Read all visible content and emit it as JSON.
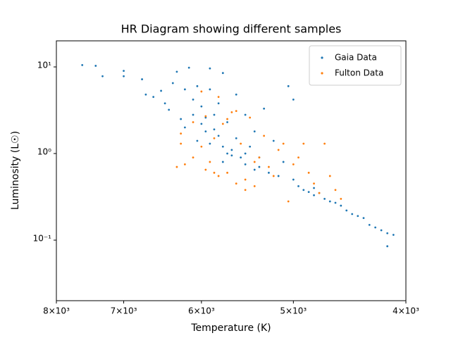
{
  "chart_data": {
    "type": "scatter",
    "title": "HR Diagram showing different samples",
    "x_label": "Temperature (K)",
    "y_label": "Luminosity (L☉)",
    "xscale": "log",
    "yscale": "log",
    "legend": "upper right",
    "xlim": [
      8000,
      4000
    ],
    "ylim": [
      0.02,
      20
    ],
    "xticks": [
      {
        "value": 8000,
        "label": "8×10³"
      },
      {
        "value": 7000,
        "label": "7×10³"
      },
      {
        "value": 6000,
        "label": "6×10³"
      },
      {
        "value": 5000,
        "label": "5×10³"
      },
      {
        "value": 4000,
        "label": "4×10³"
      }
    ],
    "yticks": [
      {
        "value": 0.1,
        "label": "10⁻¹"
      },
      {
        "value": 1,
        "label": "10⁰"
      },
      {
        "value": 10,
        "label": "10¹"
      }
    ],
    "series": [
      {
        "name": "Gaia Data",
        "color": "#1f77b4",
        "x": [
          7600,
          7400,
          7300,
          7000,
          7000,
          6750,
          6700,
          6600,
          6500,
          6450,
          6400,
          6350,
          6300,
          6200,
          6150,
          6100,
          6100,
          6050,
          6000,
          6000,
          5950,
          5900,
          5900,
          5850,
          5800,
          5800,
          5750,
          5750,
          5700,
          5650,
          5600,
          5600,
          5550,
          5500,
          5500,
          5450,
          5400,
          5400,
          5350,
          5300,
          5250,
          5200,
          5150,
          5100,
          5050,
          5000,
          5000,
          4950,
          4900,
          4850,
          4800,
          4800,
          4750,
          4700,
          4650,
          4600,
          4550,
          4500,
          4450,
          4400,
          4350,
          4300,
          4250,
          4200,
          4150,
          4150,
          4100,
          5950,
          5850,
          5700,
          5650,
          5500,
          5350,
          5900,
          5750,
          6200,
          6250,
          6050
        ],
        "values": [
          10.5,
          10.3,
          7.8,
          9,
          7.8,
          7.2,
          4.8,
          4.5,
          5.3,
          3.8,
          3.2,
          6.5,
          8.8,
          5.5,
          9.8,
          4.2,
          2.8,
          6,
          3.5,
          2.2,
          1.8,
          9.6,
          5.5,
          2.8,
          1.6,
          3.8,
          8.5,
          1.2,
          2.3,
          1.1,
          4.8,
          1.5,
          0.9,
          2.8,
          0.75,
          1.2,
          0.65,
          1.8,
          0.9,
          3.3,
          0.6,
          1.4,
          0.55,
          0.8,
          6,
          4.2,
          0.5,
          0.42,
          0.38,
          0.36,
          0.4,
          0.33,
          0.35,
          0.3,
          0.28,
          0.27,
          0.25,
          0.22,
          0.2,
          0.19,
          0.18,
          0.15,
          0.14,
          0.13,
          0.12,
          0.085,
          0.115,
          2.6,
          1.9,
          1.0,
          0.95,
          1.0,
          0.7,
          1.3,
          0.8,
          2,
          2.5,
          1.4
        ]
      },
      {
        "name": "Fulton Data",
        "color": "#ff7f0e",
        "x": [
          6250,
          6200,
          6100,
          6000,
          5950,
          5900,
          5850,
          5800,
          5750,
          5700,
          5650,
          5600,
          5550,
          5500,
          5450,
          5400,
          5350,
          5300,
          5250,
          5200,
          5150,
          5100,
          5050,
          5000,
          4950,
          4900,
          4850,
          4800,
          4750,
          4700,
          4650,
          4600,
          4550,
          6000,
          5800,
          5600,
          6100,
          5700,
          5500,
          5950,
          6300,
          6250,
          5850,
          5400
        ],
        "values": [
          1.7,
          0.75,
          0.9,
          1.2,
          0.65,
          0.8,
          1.5,
          0.55,
          2.2,
          0.6,
          3,
          0.45,
          1.3,
          0.5,
          2.6,
          0.42,
          0.9,
          1.6,
          0.7,
          0.55,
          1.1,
          1.3,
          0.28,
          0.75,
          0.9,
          1.3,
          0.6,
          0.45,
          0.35,
          1.3,
          0.55,
          0.38,
          0.3,
          5.2,
          4.5,
          3.1,
          2.3,
          2.5,
          0.38,
          2.7,
          0.7,
          1.3,
          0.6,
          0.8
        ]
      }
    ]
  }
}
